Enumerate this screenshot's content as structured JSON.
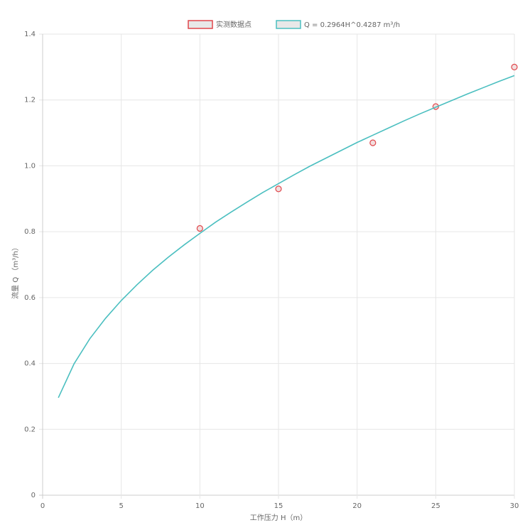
{
  "chart_data": {
    "type": "scatter",
    "x_label": "工作压力 H（m）",
    "y_label": "流量 Q （m³/h）",
    "xlim": [
      0,
      30
    ],
    "xticks": [
      0,
      5,
      10,
      15,
      20,
      25,
      30
    ],
    "ylim": [
      0,
      1.4
    ],
    "yticks": [
      0,
      0.2,
      0.4,
      0.6,
      {
        "value": 0.8,
        "label": "0.8"
      },
      {
        "value": 1.0,
        "label": "1.0"
      },
      1.2,
      1.4
    ],
    "grid": true,
    "legend": "top",
    "series": [
      {
        "name": "实测数据点",
        "color": "#e0474c",
        "show_line": false,
        "x": [
          10,
          15,
          21,
          25,
          30
        ],
        "values": [
          0.81,
          0.93,
          1.07,
          1.18,
          1.3
        ]
      },
      {
        "name": "Q = 0.2964H^0.4287 m³/h",
        "color": "#4bbfc0",
        "show_line": true,
        "x": [
          1,
          2,
          3,
          4,
          5,
          6,
          7,
          8,
          9,
          10,
          11,
          12,
          13,
          14,
          15,
          16,
          17,
          18,
          19,
          20,
          21,
          22,
          23,
          24,
          25,
          26,
          27,
          28,
          29,
          30
        ],
        "values": [
          0.296,
          0.399,
          0.475,
          0.537,
          0.591,
          0.639,
          0.683,
          0.723,
          0.76,
          0.795,
          0.829,
          0.86,
          0.89,
          0.919,
          0.946,
          0.973,
          0.999,
          1.023,
          1.047,
          1.071,
          1.093,
          1.115,
          1.137,
          1.158,
          1.178,
          1.198,
          1.218,
          1.237,
          1.256,
          1.274
        ]
      }
    ]
  }
}
